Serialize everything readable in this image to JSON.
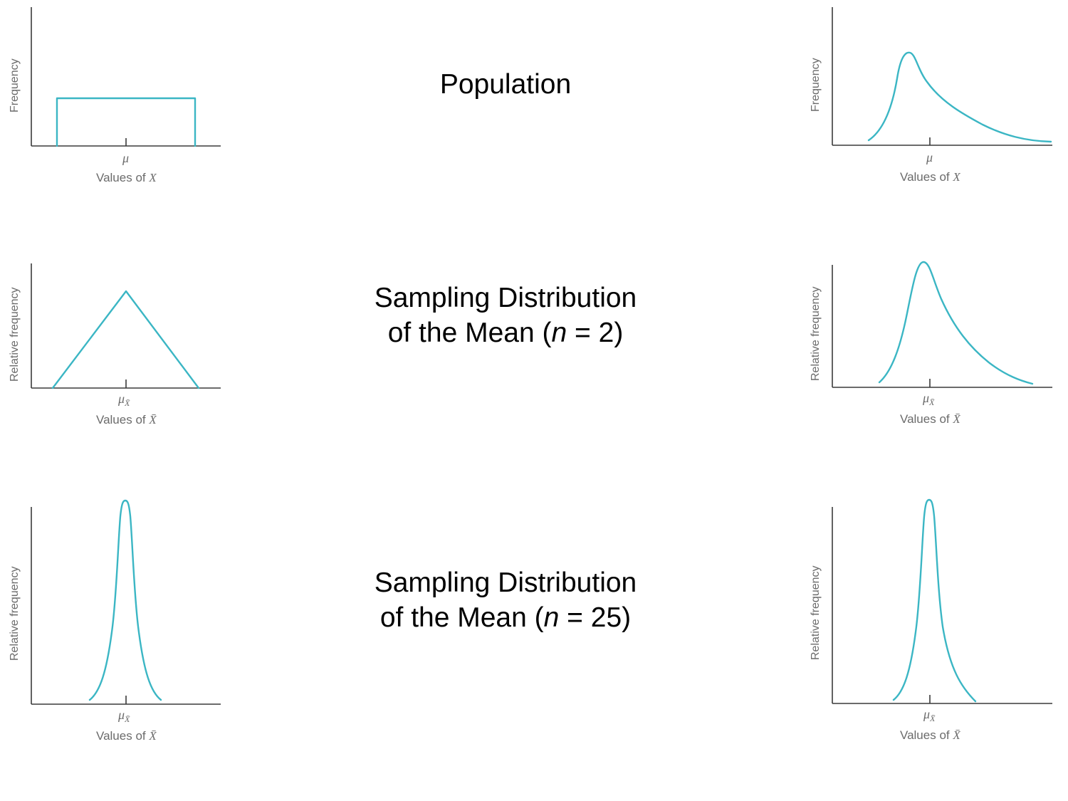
{
  "colors": {
    "curve": "#3bb6c4",
    "axis": "#3a3a3a",
    "label": "#6b6b6b"
  },
  "rows": [
    {
      "caption_lines": [
        "Population"
      ],
      "panels": [
        {
          "ylabel": "Frequency",
          "tick_label": "μ",
          "tick_subscript": "",
          "xlabel_prefix": "Values of ",
          "xlabel_symbol": "X",
          "xlabel_bar": false,
          "shape": "uniform"
        },
        {
          "ylabel": "Frequency",
          "tick_label": "μ",
          "tick_subscript": "",
          "xlabel_prefix": "Values of ",
          "xlabel_symbol": "X",
          "xlabel_bar": false,
          "shape": "right-skewed"
        }
      ]
    },
    {
      "caption_lines": [
        "Sampling Distribution",
        "of the Mean ("
      ],
      "caption_n": "n",
      "caption_rest": " = 2)",
      "panels": [
        {
          "ylabel": "Relative frequency",
          "tick_label": "μ",
          "tick_subscript": "X̄",
          "xlabel_prefix": "Values of ",
          "xlabel_symbol": "X̄",
          "xlabel_bar": true,
          "shape": "triangular"
        },
        {
          "ylabel": "Relative frequency",
          "tick_label": "μ",
          "tick_subscript": "X̄",
          "xlabel_prefix": "Values of ",
          "xlabel_symbol": "X̄",
          "xlabel_bar": true,
          "shape": "right-skewed"
        }
      ]
    },
    {
      "caption_lines": [
        "Sampling Distribution",
        "of the Mean ("
      ],
      "caption_n": "n",
      "caption_rest": " = 25)",
      "panels": [
        {
          "ylabel": "Relative frequency",
          "tick_label": "μ",
          "tick_subscript": "X̄",
          "xlabel_prefix": "Values of ",
          "xlabel_symbol": "X̄",
          "xlabel_bar": true,
          "shape": "normal-peaked"
        },
        {
          "ylabel": "Relative frequency",
          "tick_label": "μ",
          "tick_subscript": "X̄",
          "xlabel_prefix": "Values of ",
          "xlabel_symbol": "X̄",
          "xlabel_bar": true,
          "shape": "normal-peaked"
        }
      ]
    }
  ]
}
